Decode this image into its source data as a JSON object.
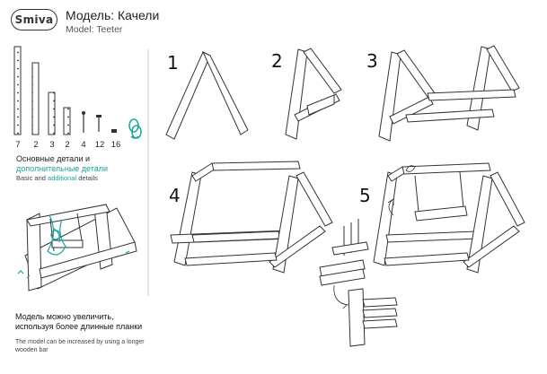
{
  "header": {
    "logo": "Smiva",
    "title_ru": "Модель: Качели",
    "title_en": "Model: Teeter"
  },
  "parts": {
    "quantities": [
      "7",
      "2",
      "3",
      "2",
      "4",
      "12",
      "16"
    ],
    "label_ru_main": "Основные детали и",
    "label_ru_additional": "дополнительные детали",
    "label_en_basic": "Basic and",
    "label_en_additional": "additional",
    "label_en_end": "details"
  },
  "steps": [
    "1",
    "2",
    "3",
    "4",
    "5"
  ],
  "note": {
    "ru": "Модель можно увеличить, используя более длинные планки",
    "en": "The model can be increased by using a longer wooden bar"
  },
  "colors": {
    "accent": "#1aa5a0",
    "line": "#333333"
  }
}
